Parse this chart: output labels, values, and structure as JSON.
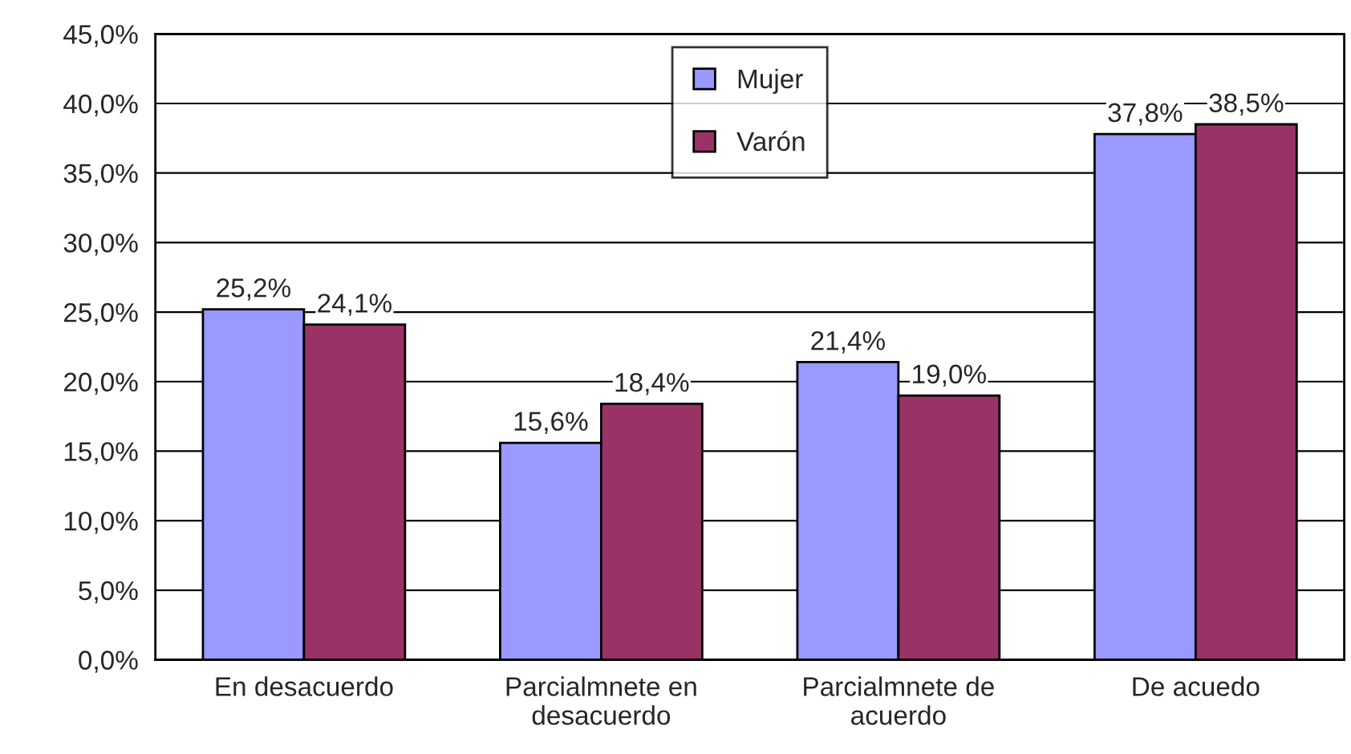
{
  "chart_data": {
    "type": "bar",
    "categories": [
      "En desacuerdo",
      "Parcialmnete en\ndesacuerdo",
      "Parcialmnete de\nacuerdo",
      "De acuedo"
    ],
    "series": [
      {
        "name": "Mujer",
        "color": "#9999ff",
        "values": [
          25.2,
          15.6,
          21.4,
          37.8
        ],
        "value_labels": [
          "25,2%",
          "15,6%",
          "21,4%",
          "37,8%"
        ]
      },
      {
        "name": "Varón",
        "color": "#993366",
        "values": [
          24.1,
          18.4,
          19.0,
          38.5
        ],
        "value_labels": [
          "24,1%",
          "18,4%",
          "19,0%",
          "38,5%"
        ]
      }
    ],
    "ylim": [
      0,
      45
    ],
    "yticks": [
      {
        "value": 0,
        "label": "0,0%"
      },
      {
        "value": 5,
        "label": "5,0%"
      },
      {
        "value": 10,
        "label": "10,0%"
      },
      {
        "value": 15,
        "label": "15,0%"
      },
      {
        "value": 20,
        "label": "20,0%"
      },
      {
        "value": 25,
        "label": "25,0%"
      },
      {
        "value": 30,
        "label": "30,0%"
      },
      {
        "value": 35,
        "label": "35,0%"
      },
      {
        "value": 40,
        "label": "40,0%"
      },
      {
        "value": 45,
        "label": "45,0%"
      }
    ],
    "grid": "y",
    "legend": "top"
  }
}
